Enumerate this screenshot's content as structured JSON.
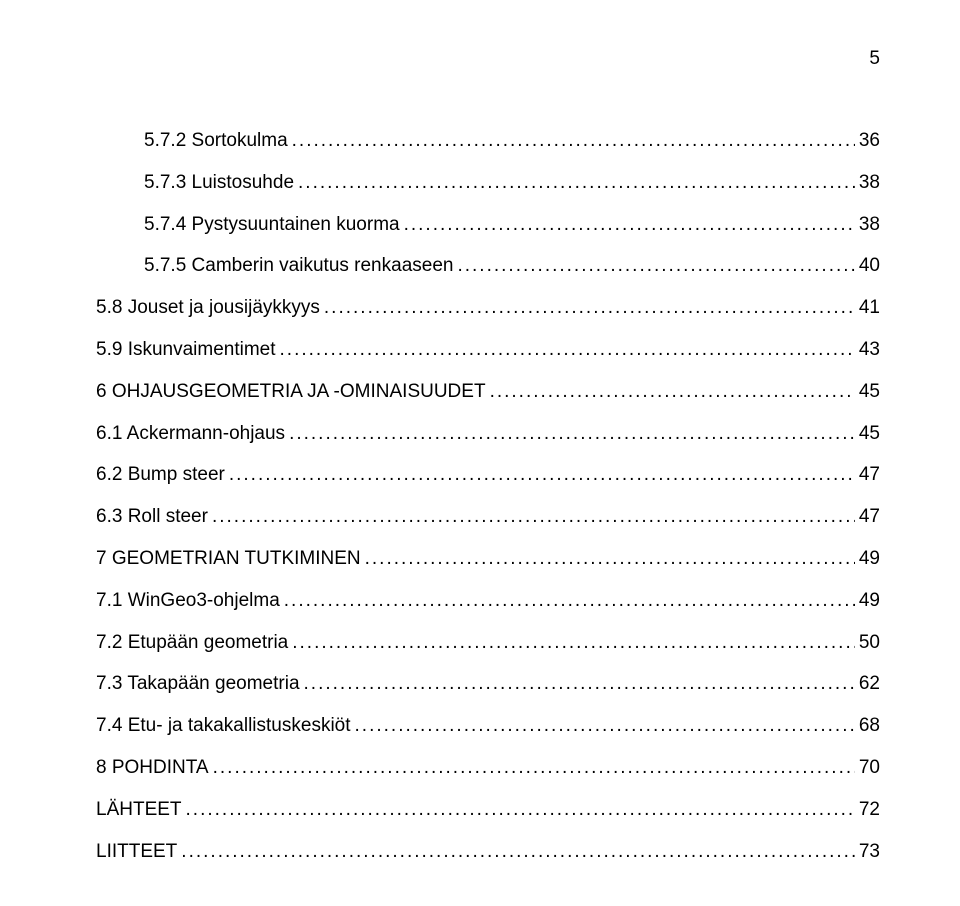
{
  "page_number": "5",
  "entries": [
    {
      "level": 2,
      "label": "5.7.2 Sortokulma",
      "page": "36"
    },
    {
      "level": 2,
      "label": "5.7.3 Luistosuhde",
      "page": "38"
    },
    {
      "level": 2,
      "label": "5.7.4 Pystysuuntainen kuorma",
      "page": "38"
    },
    {
      "level": 2,
      "label": "5.7.5 Camberin vaikutus renkaaseen",
      "page": "40"
    },
    {
      "level": 1,
      "label": "5.8 Jouset ja jousijäykkyys",
      "page": "41"
    },
    {
      "level": 1,
      "label": "5.9 Iskunvaimentimet",
      "page": "43"
    },
    {
      "level": 0,
      "label": "6 OHJAUSGEOMETRIA JA -OMINAISUUDET",
      "page": "45"
    },
    {
      "level": 1,
      "label": "6.1 Ackermann-ohjaus",
      "page": "45"
    },
    {
      "level": 1,
      "label": "6.2 Bump steer",
      "page": "47"
    },
    {
      "level": 1,
      "label": "6.3 Roll steer",
      "page": "47"
    },
    {
      "level": 0,
      "label": "7 GEOMETRIAN TUTKIMINEN",
      "page": "49"
    },
    {
      "level": 1,
      "label": "7.1 WinGeo3-ohjelma",
      "page": "49"
    },
    {
      "level": 1,
      "label": "7.2 Etupään geometria",
      "page": "50"
    },
    {
      "level": 1,
      "label": "7.3 Takapään geometria",
      "page": "62"
    },
    {
      "level": 1,
      "label": "7.4 Etu- ja takakallistuskeskiöt",
      "page": "68"
    },
    {
      "level": 0,
      "label": "8 POHDINTA",
      "page": "70"
    },
    {
      "level": 0,
      "label": "LÄHTEET",
      "page": "72"
    },
    {
      "level": 0,
      "label": "LIITTEET",
      "page": "73"
    }
  ]
}
